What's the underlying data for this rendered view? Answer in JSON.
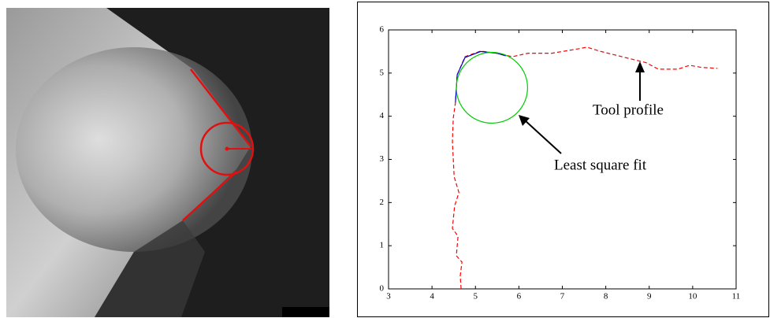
{
  "chart_data": {
    "type": "line",
    "xlim": [
      3,
      11
    ],
    "ylim": [
      0,
      6
    ],
    "xticks": [
      3,
      4,
      5,
      6,
      7,
      8,
      9,
      10,
      11
    ],
    "yticks": [
      0,
      1,
      2,
      3,
      4,
      5,
      6
    ],
    "series": [
      {
        "color": "#ff0000",
        "dashed": true,
        "x": [
          4.67,
          4.65,
          4.69,
          4.56,
          4.6,
          4.47,
          4.52,
          4.62,
          4.51,
          4.47,
          4.49,
          4.54,
          4.58,
          4.76,
          5.12,
          5.49,
          5.85,
          6.21,
          6.76,
          7.3,
          7.57,
          7.85,
          8.21,
          8.57,
          8.93,
          9.21,
          9.66,
          9.93,
          10.21,
          10.57
        ],
        "values": [
          0,
          0.3,
          0.62,
          0.77,
          1.22,
          1.4,
          1.92,
          2.23,
          2.6,
          3.41,
          3.96,
          4.32,
          4.96,
          5.38,
          5.51,
          5.46,
          5.38,
          5.46,
          5.46,
          5.55,
          5.6,
          5.51,
          5.42,
          5.33,
          5.24,
          5.09,
          5.09,
          5.18,
          5.13,
          5.11
        ]
      },
      {
        "color": "#0000cc",
        "dashed": false,
        "x": [
          4.54,
          4.58,
          4.76,
          5.12,
          5.49,
          5.7
        ],
        "values": [
          4.32,
          4.96,
          5.36,
          5.5,
          5.46,
          5.4
        ]
      }
    ],
    "circle": {
      "color": "#00cc00",
      "center": [
        5.38,
        4.66
      ],
      "radius": 0.82
    },
    "annotations": [
      "Tool profile",
      "Least square fit"
    ]
  }
}
